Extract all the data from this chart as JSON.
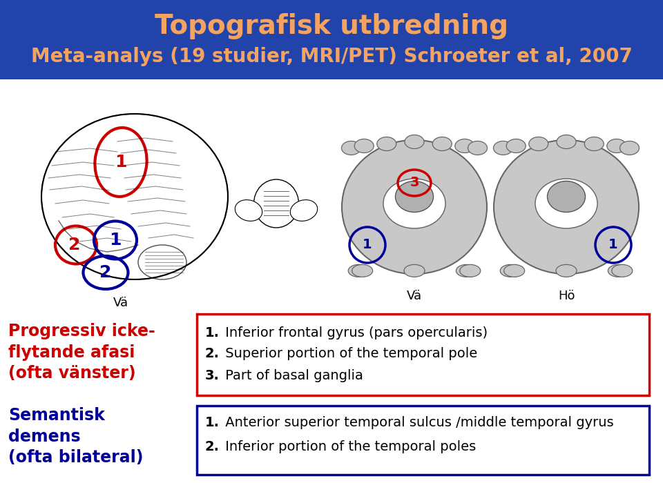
{
  "title_line1": "Topografisk utbredning",
  "title_line2": "Meta-analys (19 studier, MRI/PET) Schroeter et al, 2007",
  "header_bg": "#2244aa",
  "title_color": "#f4a460",
  "title_fontsize": 28,
  "subtitle_fontsize": 20,
  "left_label1": "Progressiv icke-\nflytande afasi\n(ofta vänster)",
  "left_label2": "Semantisk\ndemens\n(ofta bilateral)",
  "left_label1_color": "#cc0000",
  "left_label2_color": "#000099",
  "box1_items": [
    [
      "1.",
      " Inferior frontal gyrus (pars opercularis)"
    ],
    [
      "2.",
      " Superior portion of the temporal pole"
    ],
    [
      "3.",
      " Part of basal ganglia"
    ]
  ],
  "box2_items": [
    [
      "1.",
      " Anterior superior temporal sulcus /middle temporal gyrus"
    ],
    [
      "2.",
      " Inferior portion of the temporal poles"
    ]
  ],
  "box1_border": "#cc0000",
  "box2_border": "#000099",
  "va_label": "Vä",
  "ho_label": "Hö",
  "brain_label_left": "Vä",
  "bg_color": "#ffffff"
}
